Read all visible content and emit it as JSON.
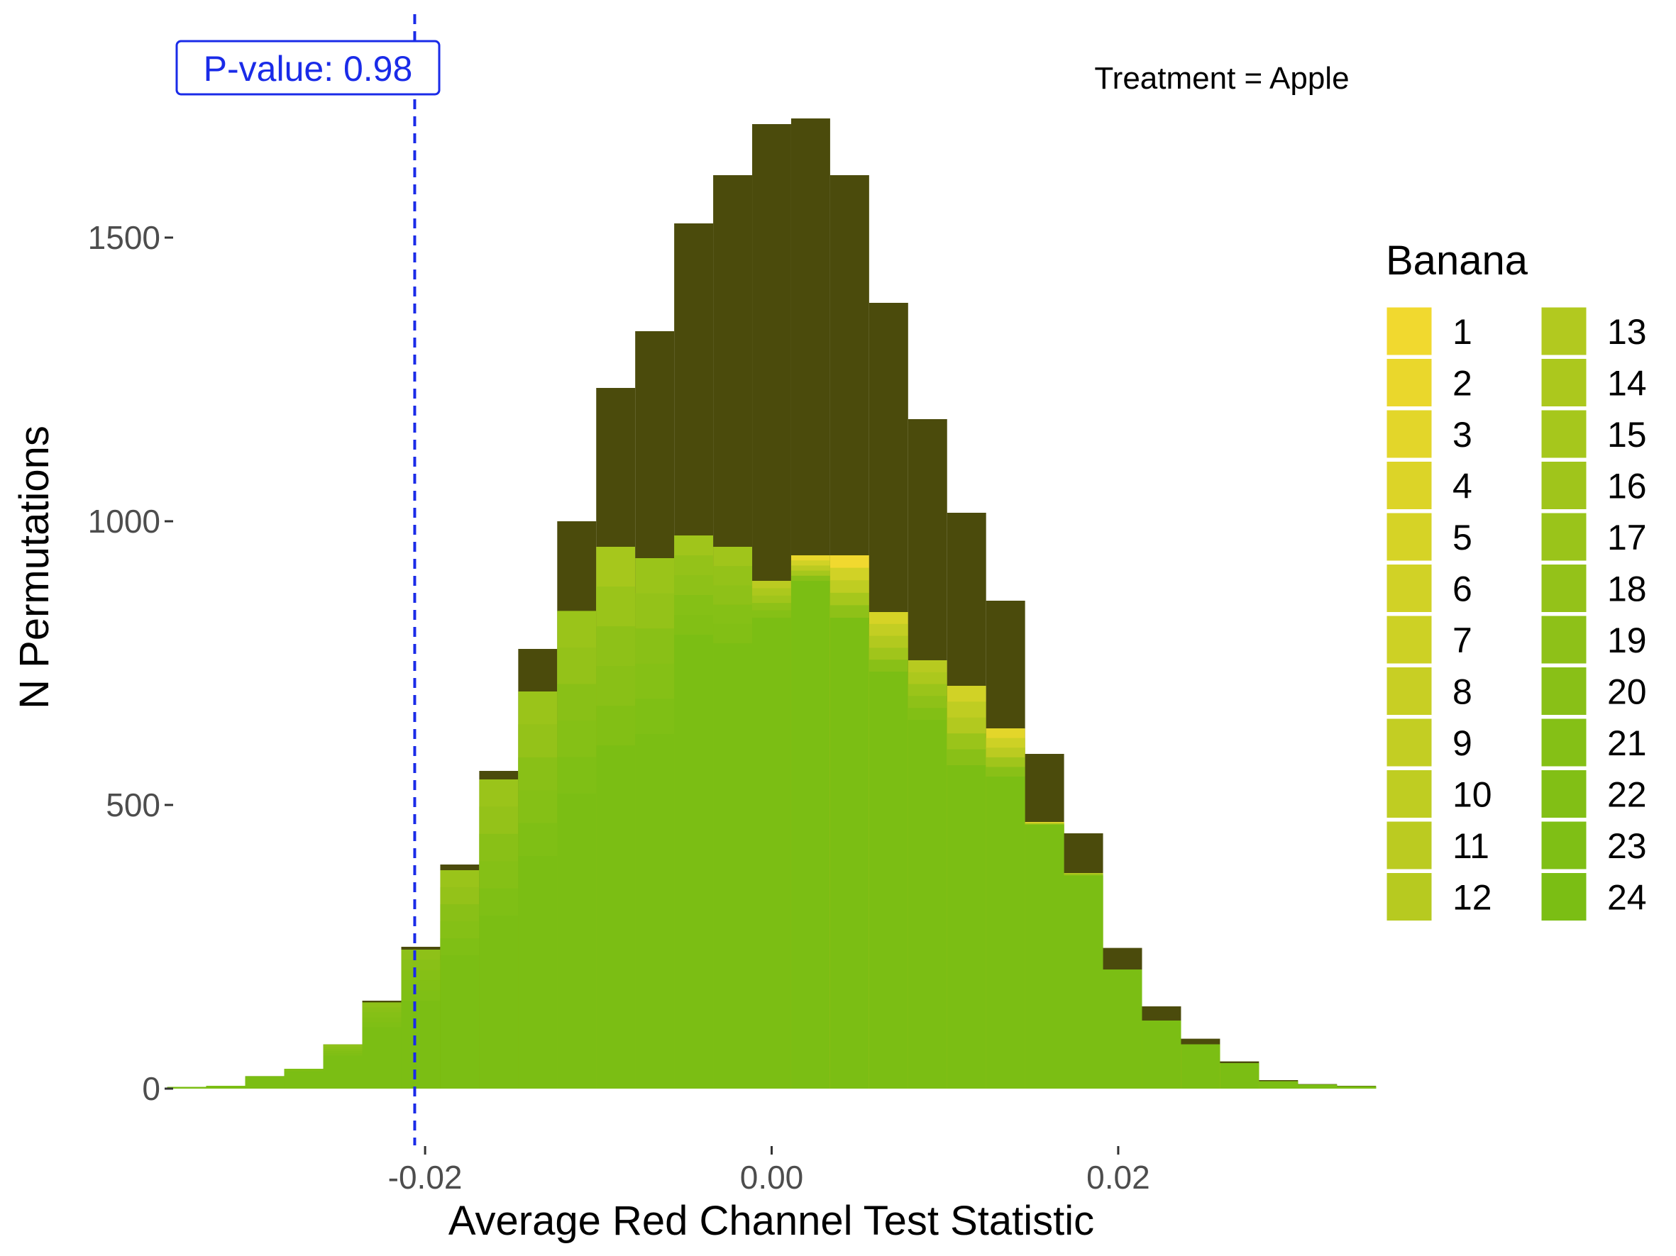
{
  "chart_data": {
    "type": "bar",
    "subtype": "stacked-histogram",
    "title": "",
    "facet_label": "Treatment = Apple",
    "xlabel": "Average Red Channel Test Statistic",
    "ylabel": "N Permutations",
    "xlim": [
      -0.0345,
      0.0345
    ],
    "ylim": [
      -100,
      1800
    ],
    "x_ticks": [
      -0.02,
      0.0,
      0.02
    ],
    "x_tick_labels": [
      "-0.02",
      "0.00",
      "0.02"
    ],
    "y_ticks": [
      0,
      500,
      1000,
      1500
    ],
    "y_tick_labels": [
      "0",
      "500",
      "1000",
      "1500"
    ],
    "grid": false,
    "bin_width": 0.00225,
    "bin_centers": [
      -0.03375,
      -0.0315,
      -0.02925,
      -0.027,
      -0.02475,
      -0.0225,
      -0.02025,
      -0.018,
      -0.01575,
      -0.0135,
      -0.01125,
      -0.009,
      -0.00675,
      -0.0045,
      -0.00225,
      0.0,
      0.00225,
      0.0045,
      0.00675,
      0.009,
      0.01125,
      0.0135,
      0.01575,
      0.018,
      0.02025,
      0.0225,
      0.02475,
      0.027,
      0.02925,
      0.0315,
      0.03375
    ],
    "total_counts": [
      3,
      5,
      22,
      35,
      78,
      155,
      250,
      395,
      560,
      775,
      1000,
      1235,
      1335,
      1525,
      1610,
      1700,
      1710,
      1610,
      1385,
      1180,
      1015,
      860,
      590,
      450,
      248,
      145,
      88,
      48,
      15,
      8,
      5
    ],
    "stack_counts": [
      3,
      5,
      22,
      35,
      78,
      152,
      245,
      385,
      545,
      700,
      842,
      955,
      935,
      975,
      955,
      895,
      940,
      940,
      840,
      755,
      710,
      635,
      470,
      380,
      210,
      120,
      78,
      45,
      13,
      7,
      4
    ],
    "base_counts": [
      3,
      5,
      18,
      28,
      58,
      108,
      155,
      235,
      305,
      410,
      520,
      605,
      625,
      800,
      785,
      830,
      895,
      830,
      735,
      650,
      570,
      550,
      465,
      375,
      250,
      120,
      92,
      50,
      28,
      10,
      5
    ],
    "stack_top_band_series": [
      24,
      24,
      24,
      23,
      19,
      19,
      19,
      17,
      17,
      17,
      17,
      15,
      17,
      16,
      16,
      11,
      2,
      1,
      5,
      12,
      6,
      3,
      2,
      11,
      2,
      1,
      4,
      6,
      10,
      22,
      24
    ],
    "p_value_label": "P-value: 0.98",
    "observed_x": -0.0206,
    "legend": {
      "title": "Banana",
      "placement": "right",
      "entries": [
        "1",
        "2",
        "3",
        "4",
        "5",
        "6",
        "7",
        "8",
        "9",
        "10",
        "11",
        "12",
        "13",
        "14",
        "15",
        "16",
        "17",
        "18",
        "19",
        "20",
        "21",
        "22",
        "23",
        "24"
      ]
    },
    "colors": {
      "other": "#4b4b0c",
      "observed_line": "#1a2be8",
      "series": [
        "#f1d92f",
        "#ead72c",
        "#e3d62a",
        "#dcd428",
        "#d6d326",
        "#d1d226",
        "#cdd125",
        "#c8cf24",
        "#c3ce23",
        "#bfcd22",
        "#bbcb21",
        "#b7ca20",
        "#b2c91f",
        "#acc81d",
        "#a6c71c",
        "#a0c51b",
        "#9ac41a",
        "#94c219",
        "#8ec118",
        "#89c017",
        "#85c016",
        "#82bf15",
        "#7fbf15",
        "#7bbe14"
      ]
    }
  }
}
